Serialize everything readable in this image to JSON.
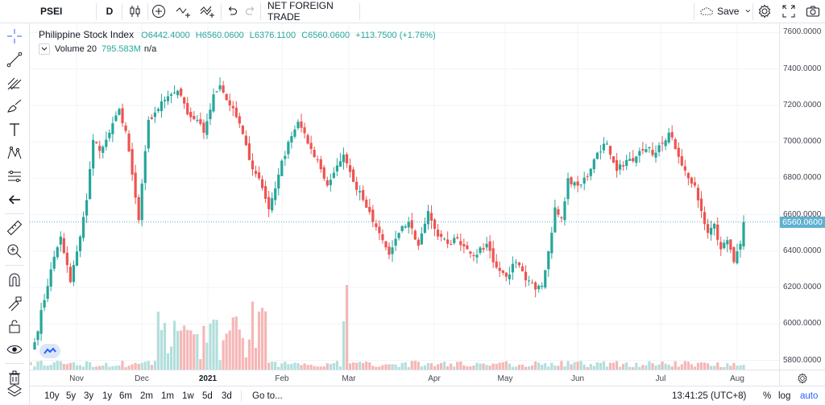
{
  "toolbar": {
    "symbol": "PSEI",
    "interval": "D",
    "indicator_name": "NET FOREIGN TRADE",
    "save_label": "Save"
  },
  "legend": {
    "title": "Philippine Stock Index",
    "open": "O6442.4000",
    "high": "H6560.0600",
    "low": "L6376.1100",
    "close": "C6560.0600",
    "change": "+113.7500 (+1.76%)"
  },
  "volume_legend": {
    "label": "Volume 20",
    "value": "795.583M",
    "ma": "n/a"
  },
  "price_axis": {
    "ticks": [
      "7600.0000",
      "7400.0000",
      "7200.0000",
      "7000.0000",
      "6800.0000",
      "6600.0000",
      "6400.0000",
      "6200.0000",
      "6000.0000",
      "5800.0000"
    ],
    "current_price": "6560.0600"
  },
  "time_axis": {
    "labels": [
      {
        "text": "Nov",
        "bold": false
      },
      {
        "text": "Dec",
        "bold": false
      },
      {
        "text": "2021",
        "bold": true
      },
      {
        "text": "Feb",
        "bold": false
      },
      {
        "text": "Mar",
        "bold": false
      },
      {
        "text": "Apr",
        "bold": false
      },
      {
        "text": "May",
        "bold": false
      },
      {
        "text": "Jun",
        "bold": false
      },
      {
        "text": "Jul",
        "bold": false
      },
      {
        "text": "Aug",
        "bold": false
      }
    ]
  },
  "bottom_bar": {
    "ranges": [
      "10y",
      "5y",
      "3y",
      "1y",
      "6m",
      "2m",
      "1m",
      "1w",
      "5d",
      "3d"
    ],
    "goto": "Go to...",
    "clock": "13:41:25 (UTC+8)",
    "percent": "%",
    "log": "log",
    "auto": "auto"
  },
  "colors": {
    "up": "#26a69a",
    "down": "#ef5350",
    "vol_up": "#b2dfdb",
    "vol_down": "#f5b7b6",
    "price_line": "#5fb1d0",
    "accent": "#2962ff"
  },
  "icons": {
    "left_toolbar": [
      "crosshair-icon",
      "trend-line-icon",
      "pitchfork-icon",
      "brush-icon",
      "text-icon",
      "pattern-icon",
      "prediction-icon",
      "back-arrow-icon",
      "ruler-icon",
      "zoom-in-icon",
      "magnet-icon",
      "lock-drawing-icon",
      "lock-icon",
      "eye-icon",
      "trash-icon",
      "layers-icon"
    ]
  },
  "chart_data": {
    "type": "candlestick",
    "symbol": "Philippine Stock Index",
    "ylim": [
      5750,
      7650
    ],
    "x_labels": [
      "Nov",
      "Dec",
      "2021",
      "Feb",
      "Mar",
      "Apr",
      "May",
      "Jun",
      "Jul",
      "Aug"
    ],
    "last_close": 6560.06,
    "keyframes": [
      {
        "i": 0,
        "close": 5900
      },
      {
        "i": 5,
        "close": 6300
      },
      {
        "i": 8,
        "close": 6480
      },
      {
        "i": 11,
        "close": 6230
      },
      {
        "i": 14,
        "close": 6480
      },
      {
        "i": 16,
        "close": 6680
      },
      {
        "i": 18,
        "close": 7010
      },
      {
        "i": 20,
        "close": 6950
      },
      {
        "i": 23,
        "close": 7050
      },
      {
        "i": 26,
        "close": 7180
      },
      {
        "i": 28,
        "close": 7060
      },
      {
        "i": 30,
        "close": 6820
      },
      {
        "i": 32,
        "close": 6570
      },
      {
        "i": 35,
        "close": 7120
      },
      {
        "i": 38,
        "close": 7180
      },
      {
        "i": 40,
        "close": 7230
      },
      {
        "i": 44,
        "close": 7280
      },
      {
        "i": 47,
        "close": 7150
      },
      {
        "i": 50,
        "close": 7120
      },
      {
        "i": 52,
        "close": 7050
      },
      {
        "i": 55,
        "close": 7260
      },
      {
        "i": 57,
        "close": 7310
      },
      {
        "i": 60,
        "close": 7200
      },
      {
        "i": 63,
        "close": 7100
      },
      {
        "i": 66,
        "close": 6900
      },
      {
        "i": 69,
        "close": 6800
      },
      {
        "i": 72,
        "close": 6630
      },
      {
        "i": 75,
        "close": 6820
      },
      {
        "i": 78,
        "close": 7000
      },
      {
        "i": 81,
        "close": 7110
      },
      {
        "i": 84,
        "close": 6990
      },
      {
        "i": 87,
        "close": 6900
      },
      {
        "i": 90,
        "close": 6760
      },
      {
        "i": 93,
        "close": 6870
      },
      {
        "i": 95,
        "close": 6930
      },
      {
        "i": 98,
        "close": 6780
      },
      {
        "i": 101,
        "close": 6680
      },
      {
        "i": 104,
        "close": 6560
      },
      {
        "i": 107,
        "close": 6460
      },
      {
        "i": 109,
        "close": 6380
      },
      {
        "i": 112,
        "close": 6500
      },
      {
        "i": 115,
        "close": 6560
      },
      {
        "i": 118,
        "close": 6430
      },
      {
        "i": 121,
        "close": 6620
      },
      {
        "i": 124,
        "close": 6480
      },
      {
        "i": 127,
        "close": 6440
      },
      {
        "i": 130,
        "close": 6470
      },
      {
        "i": 133,
        "close": 6410
      },
      {
        "i": 136,
        "close": 6380
      },
      {
        "i": 139,
        "close": 6440
      },
      {
        "i": 142,
        "close": 6310
      },
      {
        "i": 145,
        "close": 6260
      },
      {
        "i": 148,
        "close": 6340
      },
      {
        "i": 151,
        "close": 6240
      },
      {
        "i": 154,
        "close": 6190
      },
      {
        "i": 156,
        "close": 6210
      },
      {
        "i": 158,
        "close": 6400
      },
      {
        "i": 160,
        "close": 6640
      },
      {
        "i": 162,
        "close": 6580
      },
      {
        "i": 164,
        "close": 6800
      },
      {
        "i": 167,
        "close": 6760
      },
      {
        "i": 170,
        "close": 6810
      },
      {
        "i": 173,
        "close": 6940
      },
      {
        "i": 176,
        "close": 6990
      },
      {
        "i": 179,
        "close": 6840
      },
      {
        "i": 182,
        "close": 6900
      },
      {
        "i": 185,
        "close": 6920
      },
      {
        "i": 188,
        "close": 6960
      },
      {
        "i": 191,
        "close": 6940
      },
      {
        "i": 193,
        "close": 6990
      },
      {
        "i": 195,
        "close": 7050
      },
      {
        "i": 197,
        "close": 6960
      },
      {
        "i": 199,
        "close": 6870
      },
      {
        "i": 201,
        "close": 6800
      },
      {
        "i": 203,
        "close": 6760
      },
      {
        "i": 205,
        "close": 6620
      },
      {
        "i": 207,
        "close": 6500
      },
      {
        "i": 209,
        "close": 6550
      },
      {
        "i": 211,
        "close": 6410
      },
      {
        "i": 213,
        "close": 6460
      },
      {
        "i": 215,
        "close": 6340
      },
      {
        "i": 217,
        "close": 6440
      },
      {
        "i": 218,
        "close": 6560
      }
    ]
  }
}
